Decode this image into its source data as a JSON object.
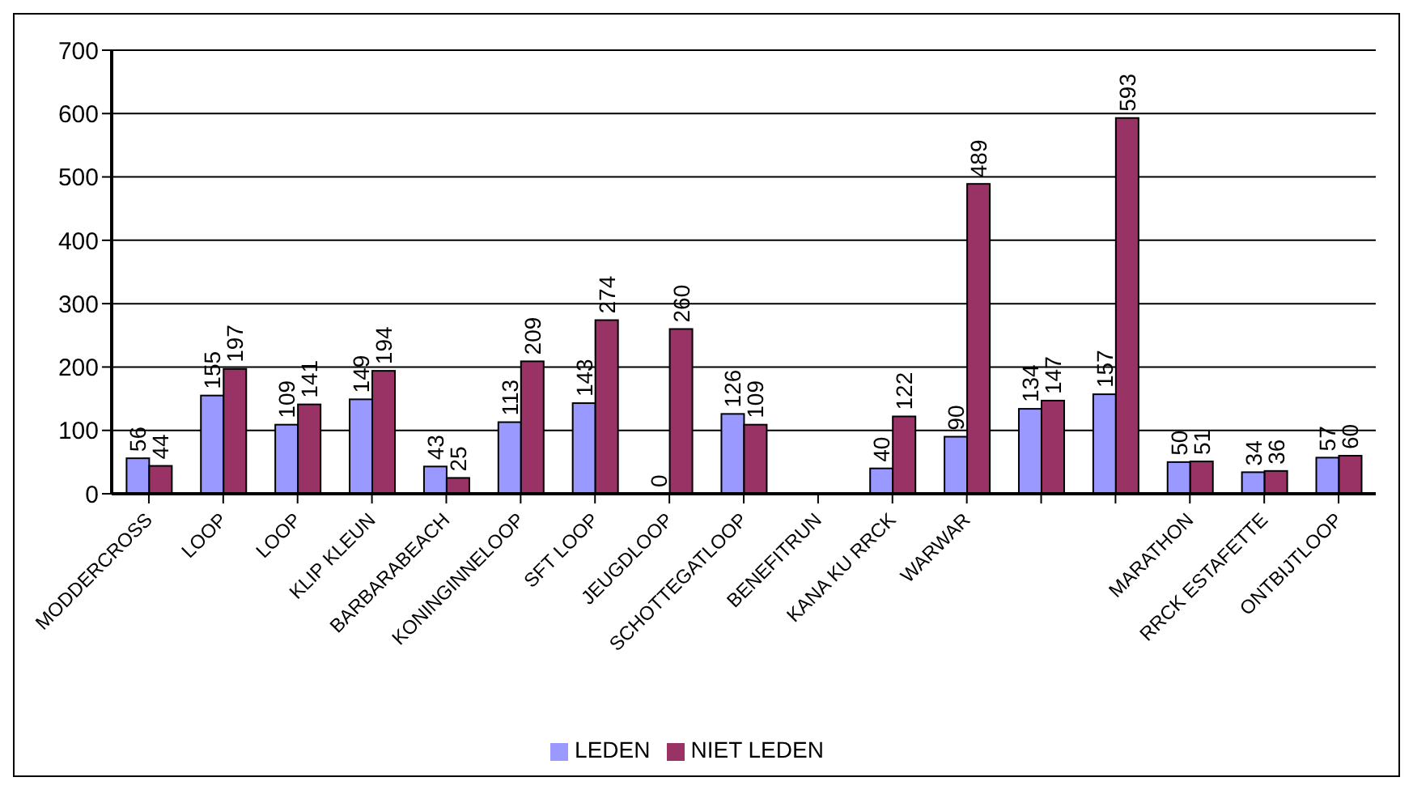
{
  "chart_data": {
    "type": "bar",
    "categories": [
      "MODDERCROSS",
      "LOOP",
      "LOOP",
      "KLIP KLEUN",
      "BARBARABEACH",
      "KONINGINNELOOP",
      "SFT LOOP",
      "JEUGDLOOP",
      "SCHOTTEGATLOOP",
      "BENEFITRUN",
      "KANA KU RRCK",
      "WARWAR",
      null,
      null,
      "MARATHON",
      "RRCK ESTAFETTE",
      "ONTBIJTLOOP"
    ],
    "series": [
      {
        "name": "LEDEN",
        "color": "#9999ff",
        "values": [
          56,
          155,
          109,
          149,
          43,
          113,
          143,
          0,
          126,
          null,
          40,
          90,
          134,
          157,
          50,
          34,
          57
        ]
      },
      {
        "name": "NIET LEDEN",
        "color": "#993366",
        "values": [
          44,
          197,
          141,
          194,
          25,
          209,
          274,
          260,
          109,
          null,
          122,
          489,
          147,
          593,
          51,
          36,
          60
        ]
      }
    ],
    "ylim": [
      0,
      700
    ],
    "yticks": [
      0,
      100,
      200,
      300,
      400,
      500,
      600,
      700
    ],
    "grid": "y",
    "legend": "bottom",
    "data_labels": true
  }
}
